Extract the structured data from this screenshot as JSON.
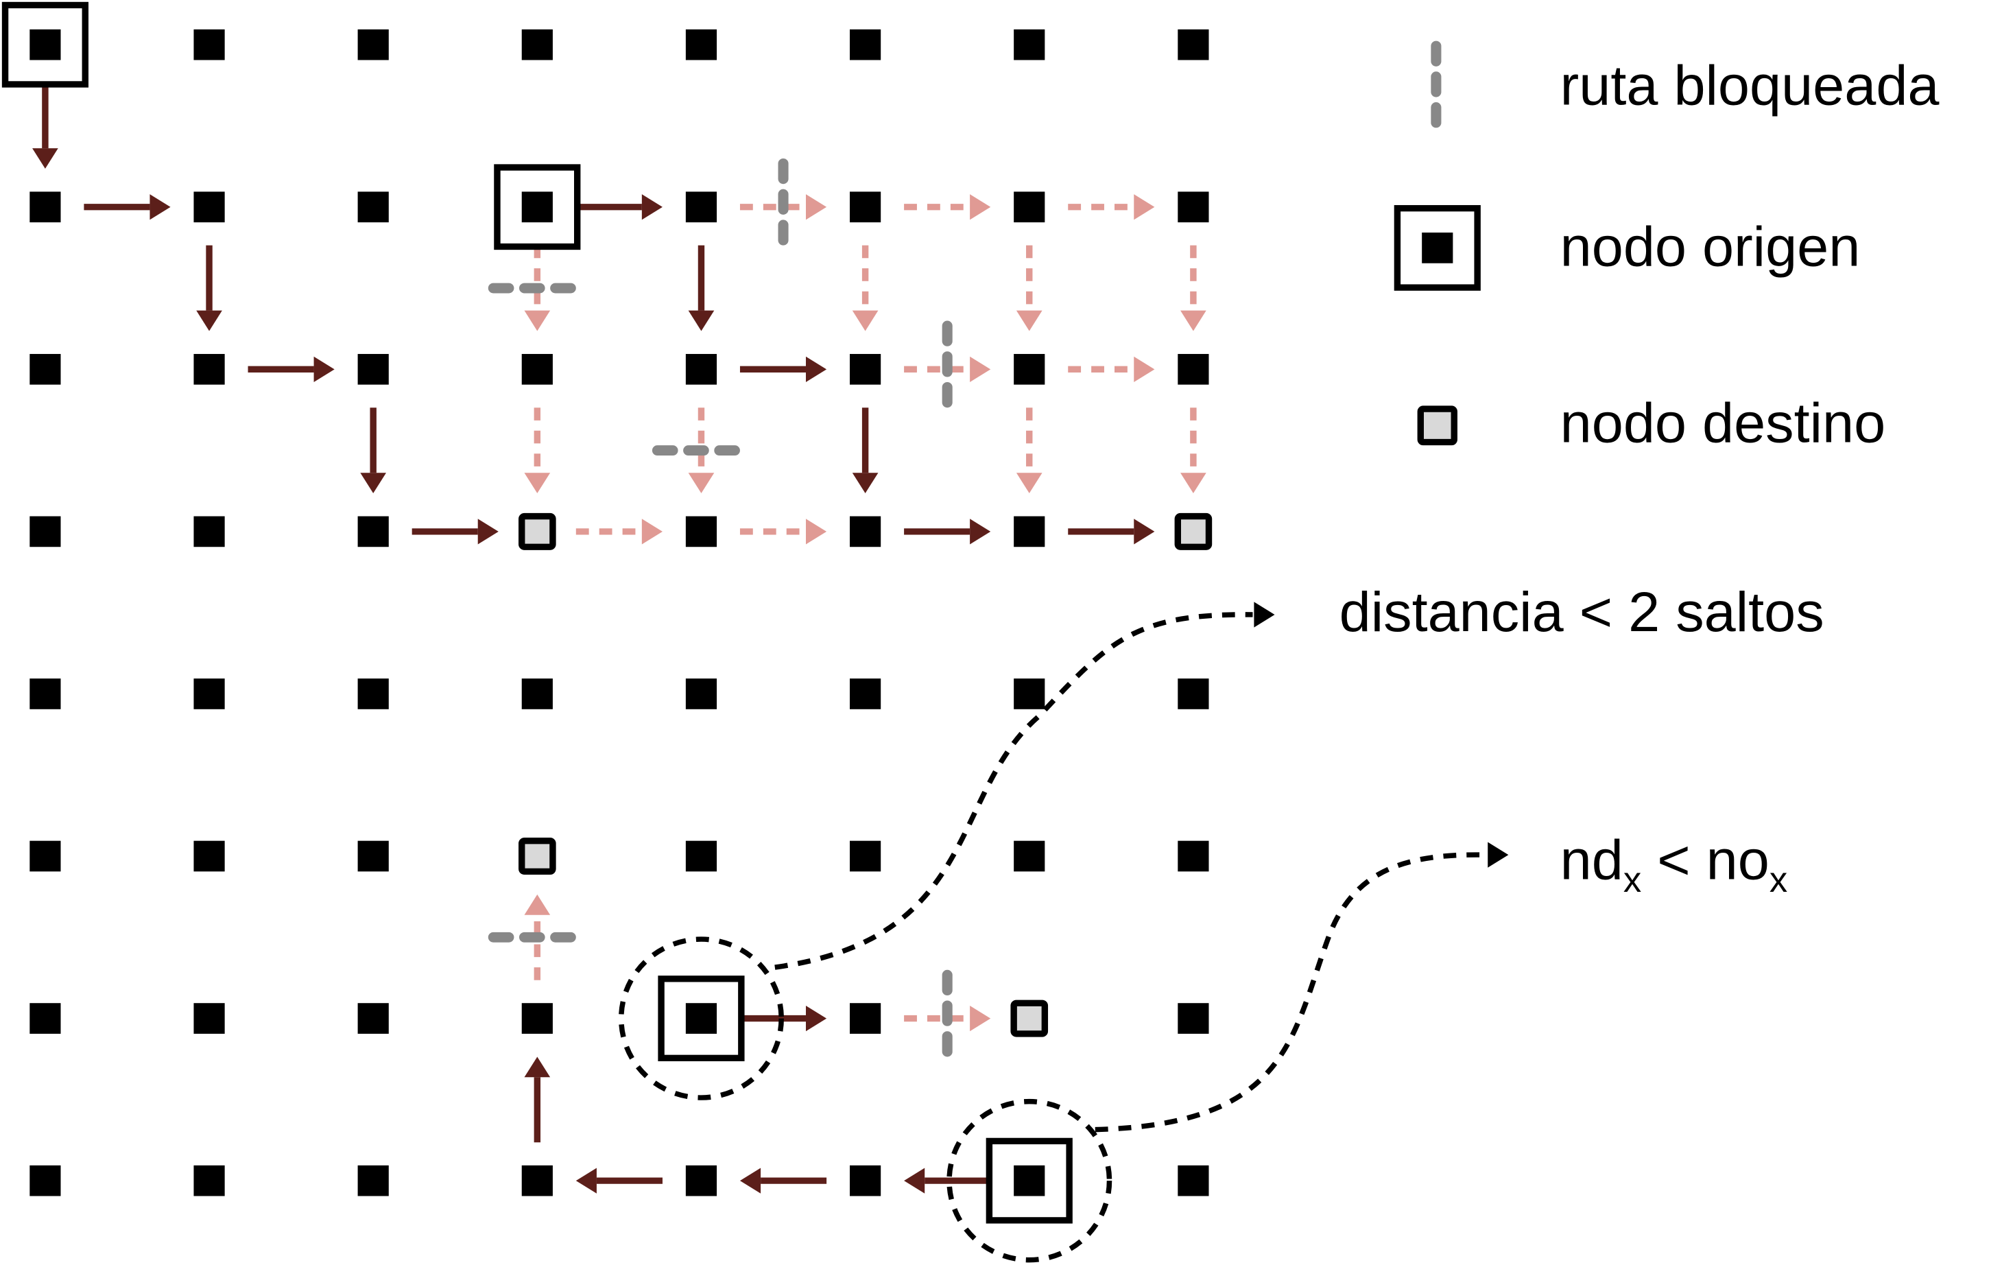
{
  "colors": {
    "node_fill": "#000000",
    "destination_fill": "#d9d9d9",
    "path_solid": "#5c1f1a",
    "path_dashed": "#e09a94",
    "blocked": "#888888",
    "annotation": "#000000"
  },
  "legend": {
    "blocked_route": "ruta bloqueada",
    "source_node": "nodo origen",
    "destination_node": "nodo destino"
  },
  "annotations": {
    "distance_note": "distancia < 2 saltos",
    "coordinate_note": {
      "a": "nd",
      "a_sub": "x",
      "op": " < ",
      "b": "no",
      "b_sub": "x"
    }
  },
  "grid": {
    "columns": 8,
    "rows": 8,
    "source_nodes": [
      [
        0,
        0
      ],
      [
        3,
        1
      ],
      [
        4,
        6
      ],
      [
        6,
        7
      ]
    ],
    "destination_nodes": [
      [
        3,
        3
      ],
      [
        7,
        3
      ],
      [
        3,
        5
      ],
      [
        6,
        6
      ]
    ],
    "circled_nodes": [
      [
        4,
        6
      ],
      [
        6,
        7
      ]
    ]
  },
  "routes": {
    "solid": [
      [
        [
          0,
          0
        ],
        [
          0,
          1
        ]
      ],
      [
        [
          0,
          1
        ],
        [
          1,
          1
        ]
      ],
      [
        [
          1,
          1
        ],
        [
          1,
          2
        ]
      ],
      [
        [
          1,
          2
        ],
        [
          2,
          2
        ]
      ],
      [
        [
          2,
          2
        ],
        [
          2,
          3
        ]
      ],
      [
        [
          2,
          3
        ],
        [
          3,
          3
        ]
      ],
      [
        [
          3,
          1
        ],
        [
          4,
          1
        ]
      ],
      [
        [
          4,
          1
        ],
        [
          4,
          2
        ]
      ],
      [
        [
          4,
          2
        ],
        [
          5,
          2
        ]
      ],
      [
        [
          5,
          2
        ],
        [
          5,
          3
        ]
      ],
      [
        [
          5,
          3
        ],
        [
          6,
          3
        ]
      ],
      [
        [
          6,
          3
        ],
        [
          7,
          3
        ]
      ],
      [
        [
          4,
          6
        ],
        [
          5,
          6
        ]
      ],
      [
        [
          6,
          7
        ],
        [
          5,
          7
        ]
      ],
      [
        [
          5,
          7
        ],
        [
          4,
          7
        ]
      ],
      [
        [
          4,
          7
        ],
        [
          3,
          7
        ]
      ],
      [
        [
          3,
          7
        ],
        [
          3,
          6
        ]
      ]
    ],
    "dashed": [
      [
        [
          4,
          1
        ],
        [
          5,
          1
        ]
      ],
      [
        [
          5,
          1
        ],
        [
          6,
          1
        ]
      ],
      [
        [
          6,
          1
        ],
        [
          7,
          1
        ]
      ],
      [
        [
          3,
          1
        ],
        [
          3,
          2
        ]
      ],
      [
        [
          3,
          2
        ],
        [
          3,
          3
        ]
      ],
      [
        [
          5,
          1
        ],
        [
          5,
          2
        ]
      ],
      [
        [
          6,
          1
        ],
        [
          6,
          2
        ]
      ],
      [
        [
          7,
          1
        ],
        [
          7,
          2
        ]
      ],
      [
        [
          5,
          2
        ],
        [
          6,
          2
        ]
      ],
      [
        [
          6,
          2
        ],
        [
          7,
          2
        ]
      ],
      [
        [
          4,
          2
        ],
        [
          4,
          3
        ]
      ],
      [
        [
          6,
          2
        ],
        [
          6,
          3
        ]
      ],
      [
        [
          7,
          2
        ],
        [
          7,
          3
        ]
      ],
      [
        [
          3,
          3
        ],
        [
          4,
          3
        ]
      ],
      [
        [
          4,
          3
        ],
        [
          5,
          3
        ]
      ],
      [
        [
          5,
          6
        ],
        [
          6,
          6
        ]
      ],
      [
        [
          3,
          6
        ],
        [
          3,
          5
        ]
      ]
    ],
    "blocked": [
      [
        [
          4,
          1
        ],
        [
          5,
          1
        ]
      ],
      [
        [
          3,
          1
        ],
        [
          3,
          2
        ]
      ],
      [
        [
          5,
          2
        ],
        [
          6,
          2
        ]
      ],
      [
        [
          4,
          2
        ],
        [
          4,
          3
        ]
      ],
      [
        [
          5,
          6
        ],
        [
          6,
          6
        ]
      ],
      [
        [
          3,
          6
        ],
        [
          3,
          5
        ]
      ]
    ]
  }
}
